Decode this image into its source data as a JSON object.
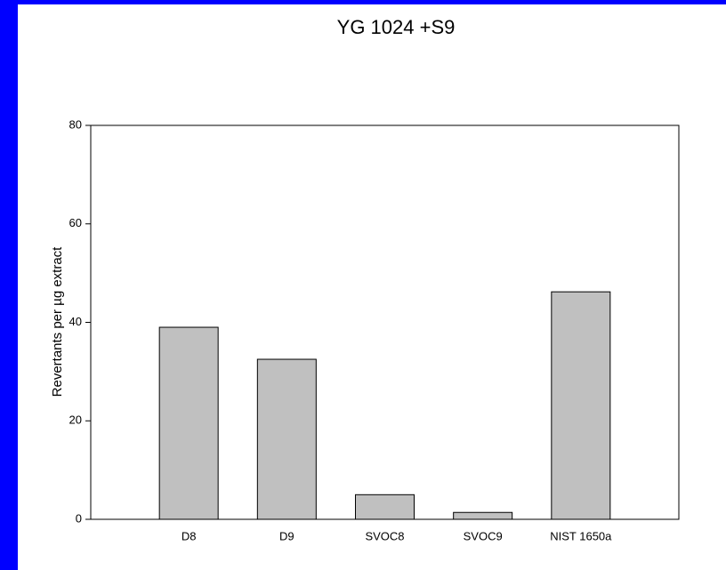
{
  "chart_data": {
    "type": "bar",
    "title": "YG 1024 +S9",
    "y_label": "Revertants per µg extract",
    "categories": [
      "D8",
      "D9",
      "SVOC8",
      "SVOC9",
      "NIST 1650a"
    ],
    "values": [
      39,
      32.5,
      5,
      1.4,
      46.2
    ],
    "color": "#c0c0c0",
    "ylim": [
      0,
      80
    ],
    "yticks": [
      0,
      20,
      40,
      60,
      80
    ],
    "grid": false
  }
}
